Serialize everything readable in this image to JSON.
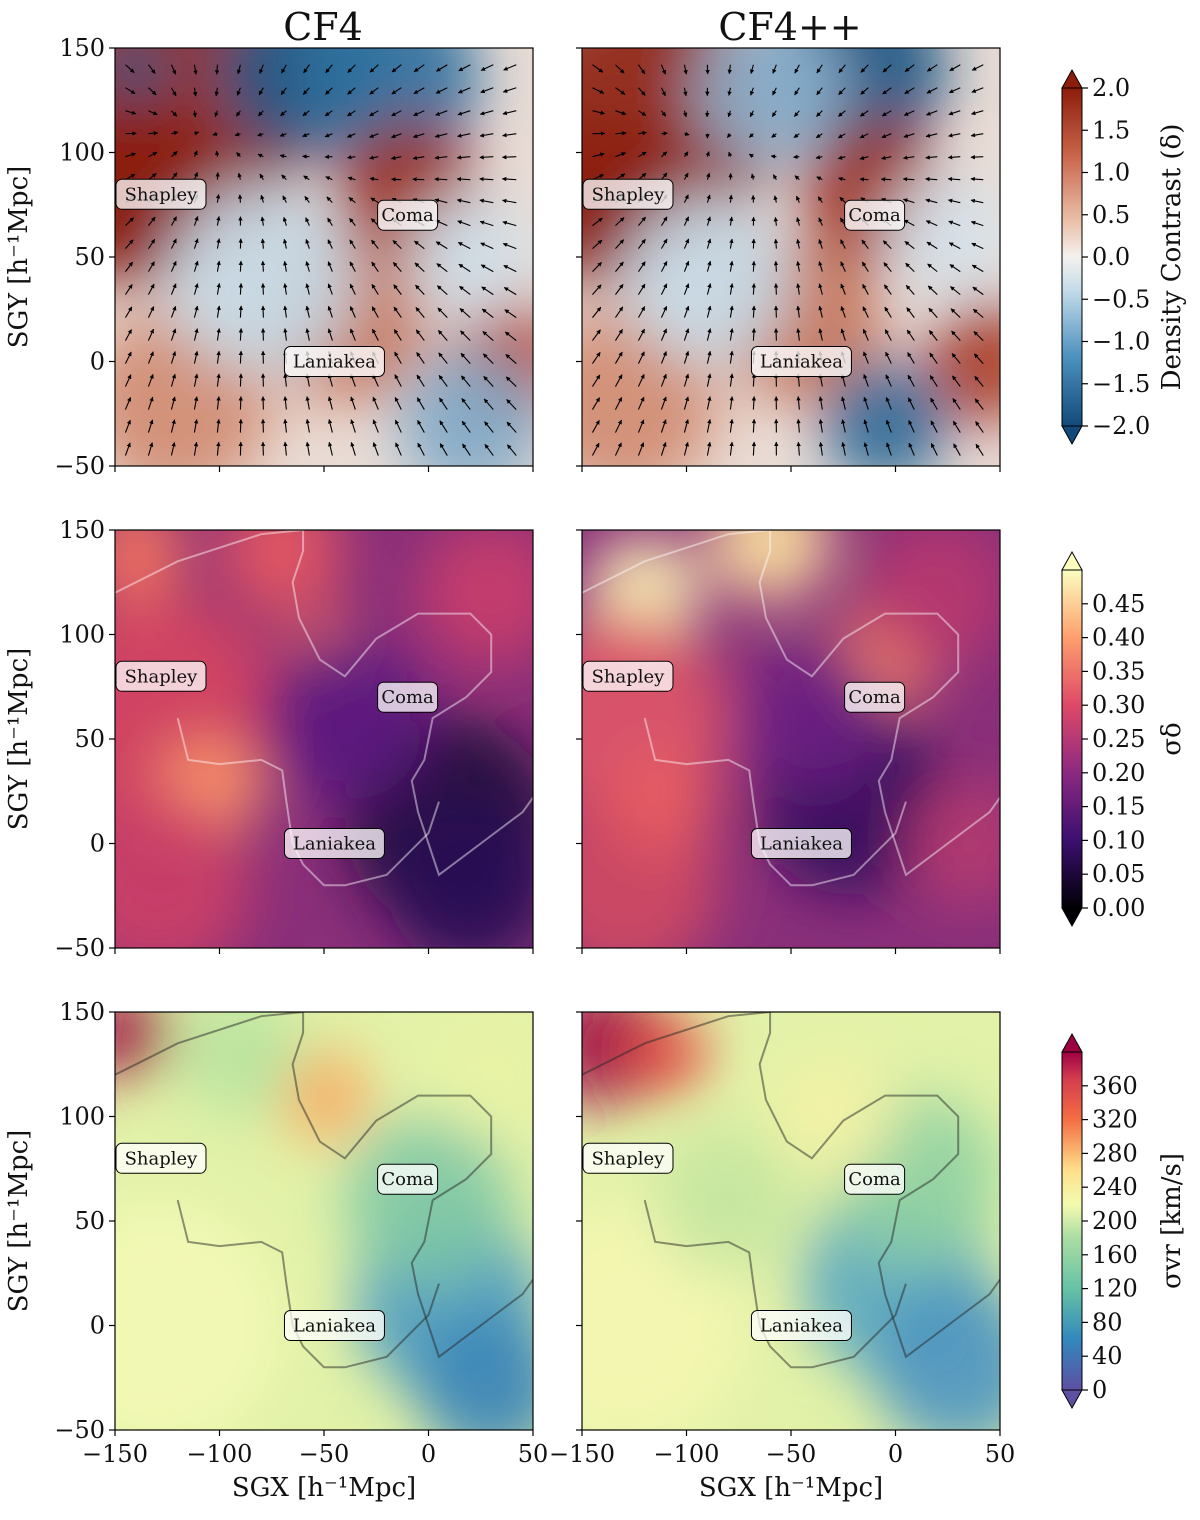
{
  "columns": [
    "CF4",
    "CF4++"
  ],
  "rows": [
    {
      "id": "density",
      "colorbar_label": "Density Contrast (δ)",
      "cmap": "RdBu_r",
      "ticks": [
        "−2.0",
        "−1.5",
        "−1.0",
        "−0.5",
        "0.0",
        "0.5",
        "1.0",
        "1.5",
        "2.0"
      ],
      "tick_values": [
        -2.0,
        -1.5,
        -1.0,
        -0.5,
        0.0,
        0.5,
        1.0,
        1.5,
        2.0
      ],
      "range": [
        -2.0,
        2.0
      ],
      "extend": "both",
      "overlay": "velocity arrows"
    },
    {
      "id": "sigma_delta",
      "colorbar_label": "σδ",
      "cmap": "magma",
      "ticks": [
        "0.00",
        "0.05",
        "0.10",
        "0.15",
        "0.20",
        "0.25",
        "0.30",
        "0.35",
        "0.40",
        "0.45"
      ],
      "tick_values": [
        0.0,
        0.05,
        0.1,
        0.15,
        0.2,
        0.25,
        0.3,
        0.35,
        0.4,
        0.45
      ],
      "range": [
        0.0,
        0.5
      ],
      "extend": "both",
      "overlay": "contour (light)"
    },
    {
      "id": "sigma_vr",
      "colorbar_label": "σvr [km/s]",
      "cmap": "Spectral_r",
      "ticks": [
        "0",
        "40",
        "80",
        "120",
        "160",
        "200",
        "240",
        "280",
        "320",
        "360"
      ],
      "tick_values": [
        0,
        40,
        80,
        120,
        160,
        200,
        240,
        280,
        320,
        360
      ],
      "range": [
        0,
        400
      ],
      "extend": "both",
      "overlay": "contour (dark)"
    }
  ],
  "chart_data": {
    "type": "heatmap",
    "layout": "3 rows × 2 columns",
    "xlabel": "SGX [h⁻¹Mpc]",
    "ylabel": "SGY [h⁻¹Mpc]",
    "xlim": [
      -150,
      50
    ],
    "ylim": [
      -50,
      150
    ],
    "xticks": [
      -150,
      -100,
      -50,
      0,
      50
    ],
    "yticks": [
      -50,
      0,
      50,
      100,
      150
    ],
    "xtick_labels": [
      "−150",
      "−100",
      "−50",
      "0",
      "50"
    ],
    "ytick_labels": [
      "−50",
      "0",
      "50",
      "100",
      "150"
    ],
    "annotations": [
      {
        "text": "Shapley",
        "x": -128,
        "y": 80
      },
      {
        "text": "Coma",
        "x": -10,
        "y": 70
      },
      {
        "text": "Laniakea",
        "x": -45,
        "y": 0
      }
    ]
  }
}
